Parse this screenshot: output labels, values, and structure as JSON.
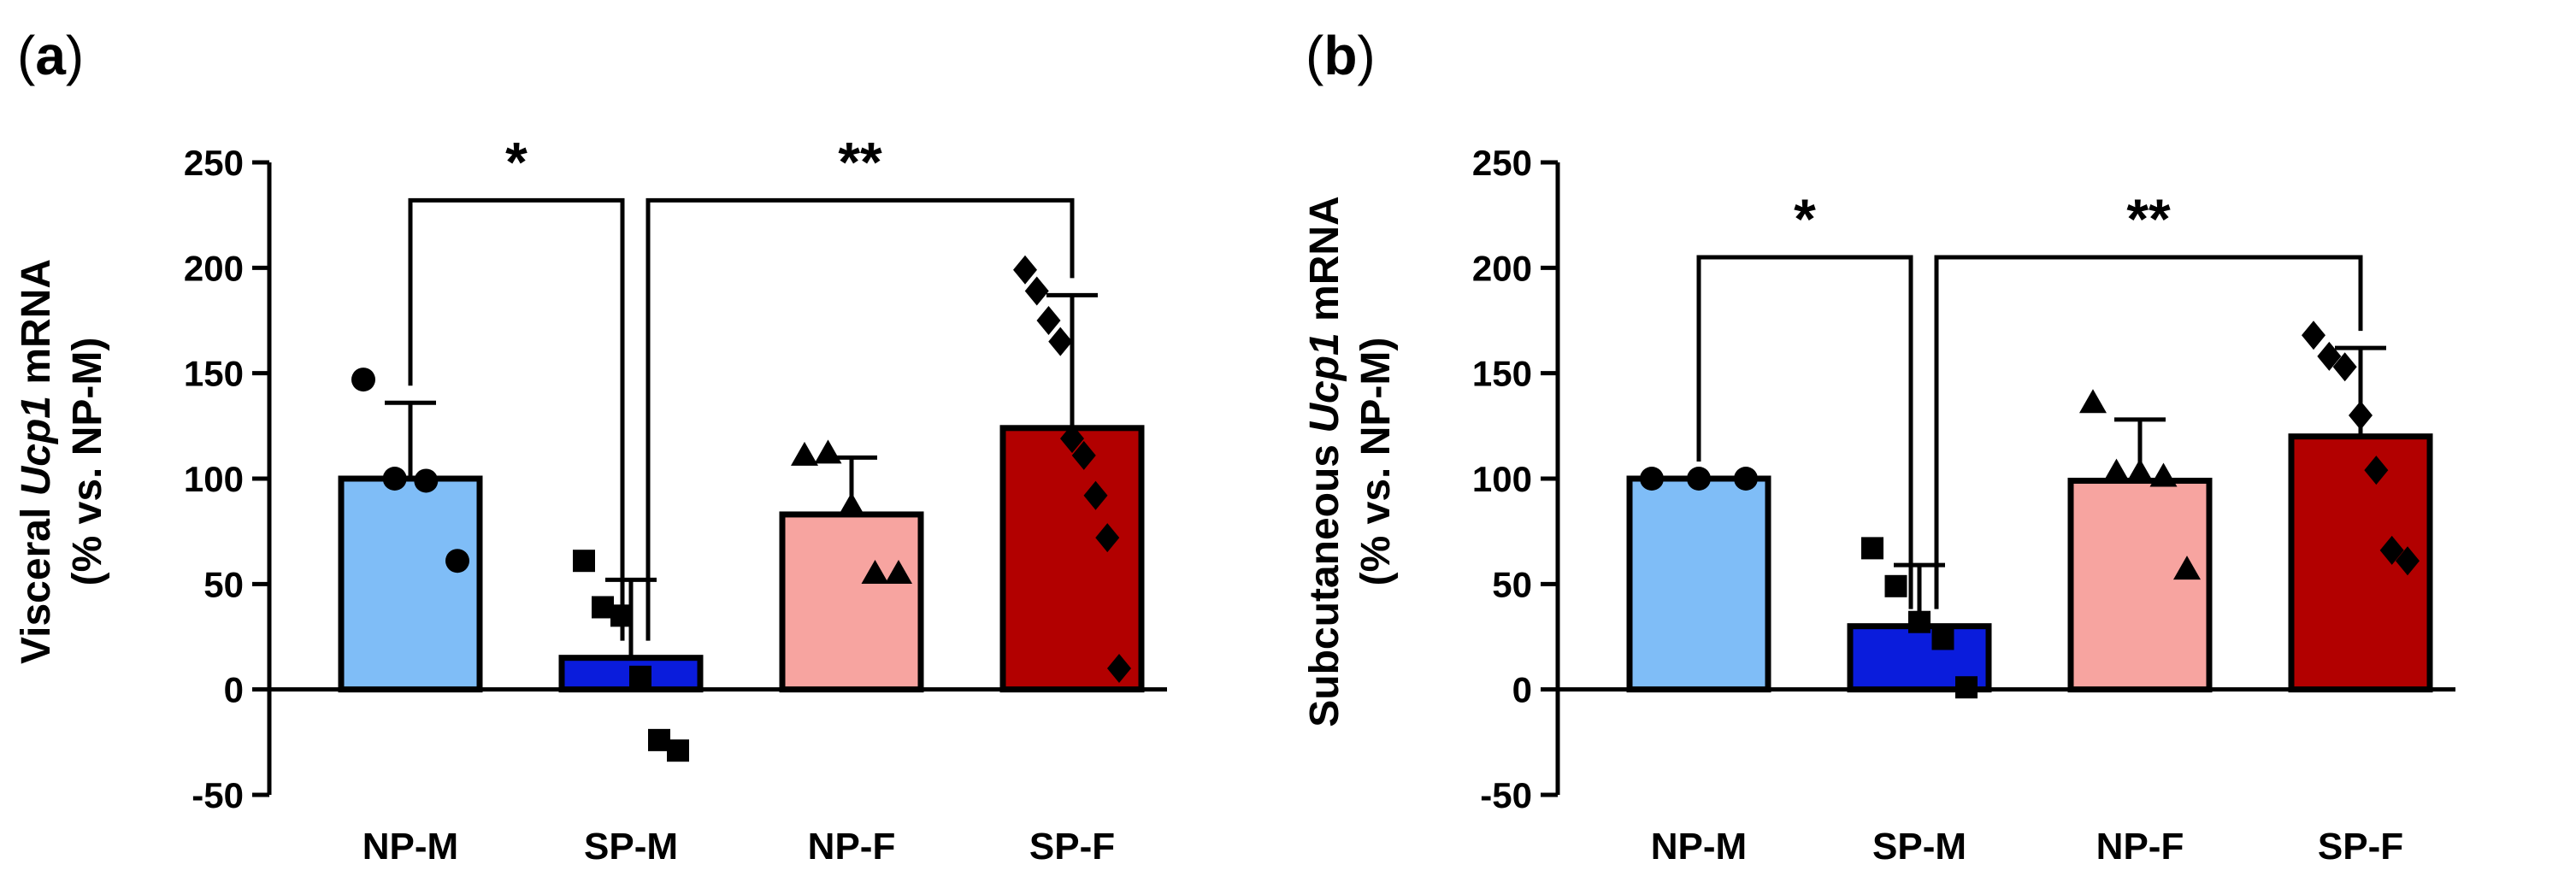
{
  "chart_data": [
    {
      "type": "bar",
      "panel_label": "a",
      "ylabel_parts": [
        "Visceral ",
        "Ucp1",
        " mRNA"
      ],
      "ylabel_line2": "(% vs. NP-M)",
      "categories": [
        "NP-M",
        "SP-M",
        "NP-F",
        "SP-F"
      ],
      "values": [
        100,
        15,
        83,
        124
      ],
      "errors": [
        36,
        37,
        27,
        63
      ],
      "colors": [
        "#7fbdf7",
        "#0a1cdc",
        "#f7a4a0",
        "#b20000"
      ],
      "markers": [
        "circle",
        "square",
        "triangle",
        "diamond"
      ],
      "points": [
        [
          147,
          100,
          99,
          61
        ],
        [
          61,
          39,
          35,
          6,
          -24,
          -29
        ],
        [
          111,
          112,
          87,
          55,
          55
        ],
        [
          199,
          189,
          175,
          165,
          119,
          111,
          92,
          72,
          10
        ]
      ],
      "ylim": [
        -50,
        250
      ],
      "yticks": [
        -50,
        0,
        50,
        100,
        150,
        200,
        250
      ],
      "significance": [
        {
          "from": 0,
          "to": 1,
          "label": "*",
          "y": 232
        },
        {
          "from": 1,
          "to": 3,
          "label": "**",
          "y": 232
        }
      ]
    },
    {
      "type": "bar",
      "panel_label": "b",
      "ylabel_parts": [
        "Subcutaneous ",
        "Ucp1",
        " mRNA"
      ],
      "ylabel_line2": "(% vs. NP-M)",
      "categories": [
        "NP-M",
        "SP-M",
        "NP-F",
        "SP-F"
      ],
      "values": [
        100,
        30,
        99,
        120
      ],
      "errors": [
        0,
        29,
        29,
        42
      ],
      "colors": [
        "#7fbdf7",
        "#0a1cdc",
        "#f7a4a0",
        "#b20000"
      ],
      "markers": [
        "circle",
        "square",
        "triangle",
        "diamond"
      ],
      "points": [
        [
          100,
          100,
          100
        ],
        [
          67,
          49,
          32,
          24,
          1
        ],
        [
          136,
          103,
          103,
          101,
          57
        ],
        [
          168,
          158,
          153,
          130,
          104,
          66,
          61
        ]
      ],
      "ylim": [
        -50,
        250
      ],
      "yticks": [
        -50,
        0,
        50,
        100,
        150,
        200,
        250
      ],
      "significance": [
        {
          "from": 0,
          "to": 1,
          "label": "*",
          "y": 205
        },
        {
          "from": 1,
          "to": 3,
          "label": "**",
          "y": 205
        }
      ]
    }
  ]
}
